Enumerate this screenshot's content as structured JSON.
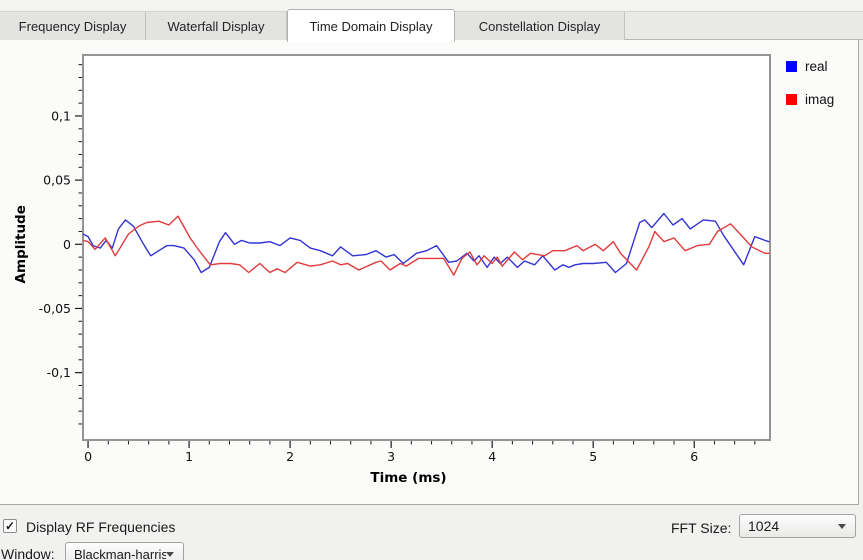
{
  "tabs": [
    {
      "label": "Frequency Display",
      "active": false
    },
    {
      "label": "Waterfall Display",
      "active": false
    },
    {
      "label": "Time Domain Display",
      "active": true
    },
    {
      "label": "Constellation Display",
      "active": false
    }
  ],
  "legend": [
    {
      "label": "real",
      "color": "#0000ff"
    },
    {
      "label": "imag",
      "color": "#ff0000"
    }
  ],
  "controls": {
    "display_rf": {
      "label": "Display RF Frequencies",
      "checked": true,
      "check_glyph": "✓"
    },
    "fft_size": {
      "label": "FFT Size:",
      "value": "1024"
    },
    "window": {
      "label": "Window:",
      "value": "Blackman-harris"
    }
  },
  "chart_data": {
    "type": "line",
    "title": "",
    "xlabel": "Time (ms)",
    "ylabel": "Amplitude",
    "xlim": [
      -0.05,
      6.75
    ],
    "ylim": [
      -0.1525,
      0.1475
    ],
    "x_major_ticks": [
      0,
      1,
      2,
      3,
      4,
      5,
      6
    ],
    "x_tick_labels": [
      "0",
      "1",
      "2",
      "3",
      "4",
      "5",
      "6"
    ],
    "x_minor_step": 0.2,
    "y_major_ticks": [
      0.1,
      0.05,
      0,
      -0.05,
      -0.1
    ],
    "y_tick_labels": [
      "0,1",
      "0,05",
      "0",
      "-0,05",
      "-0,1"
    ],
    "y_minor_step": 0.01,
    "grid": false,
    "legend_position": "right-outside",
    "series": [
      {
        "name": "real",
        "color": "#3333d4",
        "points": [
          [
            -0.05,
            0.008
          ],
          [
            0.0,
            0.006
          ],
          [
            0.05,
            -0.001
          ],
          [
            0.12,
            -0.003
          ],
          [
            0.18,
            0.003
          ],
          [
            0.24,
            -0.003
          ],
          [
            0.3,
            0.012
          ],
          [
            0.37,
            0.019
          ],
          [
            0.45,
            0.014
          ],
          [
            0.55,
            0.0
          ],
          [
            0.62,
            -0.009
          ],
          [
            0.7,
            -0.005
          ],
          [
            0.78,
            -0.001
          ],
          [
            0.85,
            -0.001
          ],
          [
            0.95,
            -0.003
          ],
          [
            1.05,
            -0.012
          ],
          [
            1.12,
            -0.022
          ],
          [
            1.2,
            -0.018
          ],
          [
            1.3,
            0.002
          ],
          [
            1.36,
            0.009
          ],
          [
            1.45,
            0.0
          ],
          [
            1.52,
            0.003
          ],
          [
            1.6,
            0.001
          ],
          [
            1.7,
            0.001
          ],
          [
            1.8,
            0.002
          ],
          [
            1.9,
            -0.001
          ],
          [
            2.0,
            0.005
          ],
          [
            2.1,
            0.003
          ],
          [
            2.2,
            -0.003
          ],
          [
            2.3,
            -0.005
          ],
          [
            2.42,
            -0.009
          ],
          [
            2.5,
            -0.002
          ],
          [
            2.62,
            -0.009
          ],
          [
            2.75,
            -0.008
          ],
          [
            2.85,
            -0.005
          ],
          [
            2.95,
            -0.01
          ],
          [
            3.03,
            -0.008
          ],
          [
            3.12,
            -0.015
          ],
          [
            3.25,
            -0.007
          ],
          [
            3.35,
            -0.005
          ],
          [
            3.45,
            -0.001
          ],
          [
            3.57,
            -0.014
          ],
          [
            3.65,
            -0.013
          ],
          [
            3.75,
            -0.007
          ],
          [
            3.82,
            -0.013
          ],
          [
            3.87,
            -0.009
          ],
          [
            3.95,
            -0.018
          ],
          [
            4.02,
            -0.01
          ],
          [
            4.08,
            -0.015
          ],
          [
            4.15,
            -0.01
          ],
          [
            4.25,
            -0.018
          ],
          [
            4.32,
            -0.013
          ],
          [
            4.42,
            -0.016
          ],
          [
            4.5,
            -0.009
          ],
          [
            4.62,
            -0.02
          ],
          [
            4.7,
            -0.016
          ],
          [
            4.76,
            -0.018
          ],
          [
            4.82,
            -0.016
          ],
          [
            4.9,
            -0.015
          ],
          [
            5.0,
            -0.015
          ],
          [
            5.13,
            -0.014
          ],
          [
            5.22,
            -0.022
          ],
          [
            5.33,
            -0.015
          ],
          [
            5.46,
            0.017
          ],
          [
            5.51,
            0.019
          ],
          [
            5.58,
            0.013
          ],
          [
            5.7,
            0.024
          ],
          [
            5.79,
            0.015
          ],
          [
            5.88,
            0.02
          ],
          [
            5.96,
            0.012
          ],
          [
            6.09,
            0.019
          ],
          [
            6.21,
            0.018
          ],
          [
            6.29,
            0.007
          ],
          [
            6.49,
            -0.016
          ],
          [
            6.6,
            0.006
          ],
          [
            6.7,
            0.003
          ],
          [
            6.74,
            0.002
          ]
        ]
      },
      {
        "name": "imag",
        "color": "#e13b3b",
        "points": [
          [
            -0.05,
            0.003
          ],
          [
            0.0,
            0.002
          ],
          [
            0.07,
            -0.004
          ],
          [
            0.17,
            0.005
          ],
          [
            0.27,
            -0.009
          ],
          [
            0.4,
            0.008
          ],
          [
            0.5,
            0.014
          ],
          [
            0.58,
            0.017
          ],
          [
            0.7,
            0.018
          ],
          [
            0.8,
            0.015
          ],
          [
            0.89,
            0.022
          ],
          [
            1.01,
            0.005
          ],
          [
            1.09,
            -0.004
          ],
          [
            1.21,
            -0.016
          ],
          [
            1.31,
            -0.015
          ],
          [
            1.41,
            -0.015
          ],
          [
            1.5,
            -0.016
          ],
          [
            1.59,
            -0.022
          ],
          [
            1.7,
            -0.015
          ],
          [
            1.8,
            -0.022
          ],
          [
            1.87,
            -0.019
          ],
          [
            1.95,
            -0.022
          ],
          [
            2.07,
            -0.014
          ],
          [
            2.2,
            -0.017
          ],
          [
            2.3,
            -0.016
          ],
          [
            2.42,
            -0.013
          ],
          [
            2.5,
            -0.016
          ],
          [
            2.57,
            -0.015
          ],
          [
            2.68,
            -0.02
          ],
          [
            2.85,
            -0.014
          ],
          [
            2.9,
            -0.013
          ],
          [
            2.99,
            -0.02
          ],
          [
            3.09,
            -0.015
          ],
          [
            3.15,
            -0.017
          ],
          [
            3.27,
            -0.011
          ],
          [
            3.4,
            -0.011
          ],
          [
            3.52,
            -0.011
          ],
          [
            3.62,
            -0.024
          ],
          [
            3.7,
            -0.011
          ],
          [
            3.78,
            -0.006
          ],
          [
            3.85,
            -0.016
          ],
          [
            3.92,
            -0.009
          ],
          [
            4.0,
            -0.015
          ],
          [
            4.05,
            -0.01
          ],
          [
            4.1,
            -0.017
          ],
          [
            4.22,
            -0.006
          ],
          [
            4.3,
            -0.012
          ],
          [
            4.38,
            -0.007
          ],
          [
            4.52,
            -0.009
          ],
          [
            4.6,
            -0.005
          ],
          [
            4.72,
            -0.005
          ],
          [
            4.84,
            -0.001
          ],
          [
            4.9,
            -0.005
          ],
          [
            5.02,
            0.0
          ],
          [
            5.1,
            -0.005
          ],
          [
            5.2,
            0.002
          ],
          [
            5.27,
            -0.007
          ],
          [
            5.43,
            -0.02
          ],
          [
            5.55,
            -0.002
          ],
          [
            5.61,
            0.01
          ],
          [
            5.7,
            0.002
          ],
          [
            5.8,
            0.005
          ],
          [
            5.91,
            -0.005
          ],
          [
            6.03,
            -0.001
          ],
          [
            6.15,
            0.0
          ],
          [
            6.23,
            0.01
          ],
          [
            6.36,
            0.016
          ],
          [
            6.49,
            0.005
          ],
          [
            6.57,
            -0.002
          ],
          [
            6.7,
            -0.007
          ],
          [
            6.74,
            -0.007
          ]
        ]
      }
    ]
  }
}
